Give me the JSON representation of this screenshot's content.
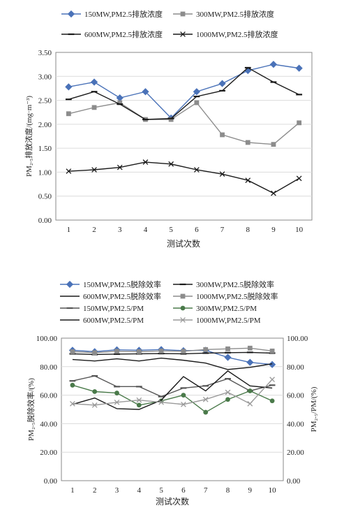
{
  "chart_data": [
    {
      "type": "line",
      "x": [
        1,
        2,
        3,
        4,
        5,
        6,
        7,
        8,
        9,
        10
      ],
      "xlabel": "测试次数",
      "ylabel": "PM₂.₅排放浓度/(mg·m⁻³)",
      "ylim": [
        0,
        3.5
      ],
      "yticks": [
        "0.00",
        "0.50",
        "1.00",
        "1.50",
        "2.00",
        "2.50",
        "3.00",
        "3.50"
      ],
      "xticks": [
        "1",
        "2",
        "3",
        "4",
        "5",
        "6",
        "7",
        "8",
        "9",
        "10"
      ],
      "legend_position": "top",
      "series": [
        {
          "name": "150MW,PM2.5排放浓度",
          "color": "#4a72b8",
          "marker": "diamond",
          "values": [
            2.78,
            2.88,
            2.55,
            2.68,
            2.13,
            2.68,
            2.85,
            3.12,
            3.25,
            3.17
          ]
        },
        {
          "name": "300MW,PM2.5排放浓度",
          "color": "#8c8c8c",
          "marker": "square",
          "values": [
            2.22,
            2.35,
            2.45,
            2.1,
            2.1,
            2.45,
            1.78,
            1.62,
            1.58,
            2.03
          ]
        },
        {
          "name": "600MW,PM2.5排放浓度",
          "color": "#1a1a1a",
          "marker": "dash",
          "values": [
            2.52,
            2.68,
            2.42,
            2.1,
            2.12,
            2.58,
            2.7,
            3.18,
            2.88,
            2.62
          ]
        },
        {
          "name": "1000MW,PM2.5排放浓度",
          "color": "#1a1a1a",
          "marker": "x",
          "values": [
            1.02,
            1.05,
            1.1,
            1.21,
            1.17,
            1.05,
            0.96,
            0.83,
            0.56,
            0.87
          ]
        }
      ]
    },
    {
      "type": "line",
      "x": [
        1,
        2,
        3,
        4,
        5,
        6,
        7,
        8,
        9,
        10
      ],
      "xlabel": "测试次数",
      "ylabel": "PM₂.₅脱除效率/(%)",
      "ylabel_right": "PM₂.₅/PM/(%)",
      "ylim": [
        0,
        100
      ],
      "yticks": [
        "0.00",
        "20.00",
        "40.00",
        "60.00",
        "80.00",
        "100.00"
      ],
      "yticks_right": [
        "0.00",
        "20.00",
        "40.00",
        "60.00",
        "80.00",
        "100.00"
      ],
      "xticks": [
        "1",
        "2",
        "3",
        "4",
        "5",
        "6",
        "7",
        "8",
        "9",
        "10"
      ],
      "legend_position": "top",
      "series": [
        {
          "name": "150MW,PM2.5脱除效率",
          "color": "#4a72b8",
          "marker": "diamond",
          "values": [
            91.5,
            90.5,
            91.8,
            91.5,
            92.0,
            91.2,
            91.5,
            86.5,
            83.0,
            81.5
          ]
        },
        {
          "name": "300MW,PM2.5脱除效率",
          "color": "#1a1a1a",
          "marker": "dash",
          "values": [
            89.0,
            88.5,
            88.8,
            89.0,
            89.2,
            89.0,
            89.5,
            89.8,
            90.0,
            89.5
          ]
        },
        {
          "name": "600MW,PM2.5脱除效率",
          "color": "#1a1a1a",
          "marker": "none",
          "values": [
            85.0,
            84.0,
            85.5,
            84.0,
            86.0,
            84.5,
            82.5,
            78.0,
            79.5,
            82.0
          ]
        },
        {
          "name": "1000MW,PM2.5脱除效率",
          "color": "#8c8c8c",
          "marker": "square",
          "values": [
            90.5,
            89.8,
            90.8,
            90.5,
            91.0,
            90.8,
            92.0,
            92.5,
            93.0,
            91.0
          ]
        },
        {
          "name": "150MW,PM2.5/PM",
          "color": "#555555",
          "marker": "dash",
          "values": [
            70.0,
            73.5,
            66.0,
            66.0,
            59.0,
            65.0,
            66.5,
            71.5,
            63.0,
            67.0
          ]
        },
        {
          "name": "300MW,PM2.5/PM",
          "color": "#4a7a4a",
          "marker": "circle",
          "values": [
            67.0,
            62.5,
            61.5,
            53.0,
            56.0,
            60.0,
            48.0,
            57.0,
            63.0,
            56.0
          ]
        },
        {
          "name": "600MW,PM2.5/PM",
          "color": "#1a1a1a",
          "marker": "none",
          "values": [
            53.5,
            58.0,
            50.5,
            50.0,
            56.5,
            73.0,
            63.0,
            77.0,
            66.5,
            65.0
          ]
        },
        {
          "name": "1000MW,PM2.5/PM",
          "color": "#9a9a9a",
          "marker": "x",
          "values": [
            54.0,
            53.0,
            55.0,
            56.5,
            55.0,
            53.5,
            57.0,
            62.0,
            54.0,
            71.0
          ]
        }
      ]
    }
  ]
}
